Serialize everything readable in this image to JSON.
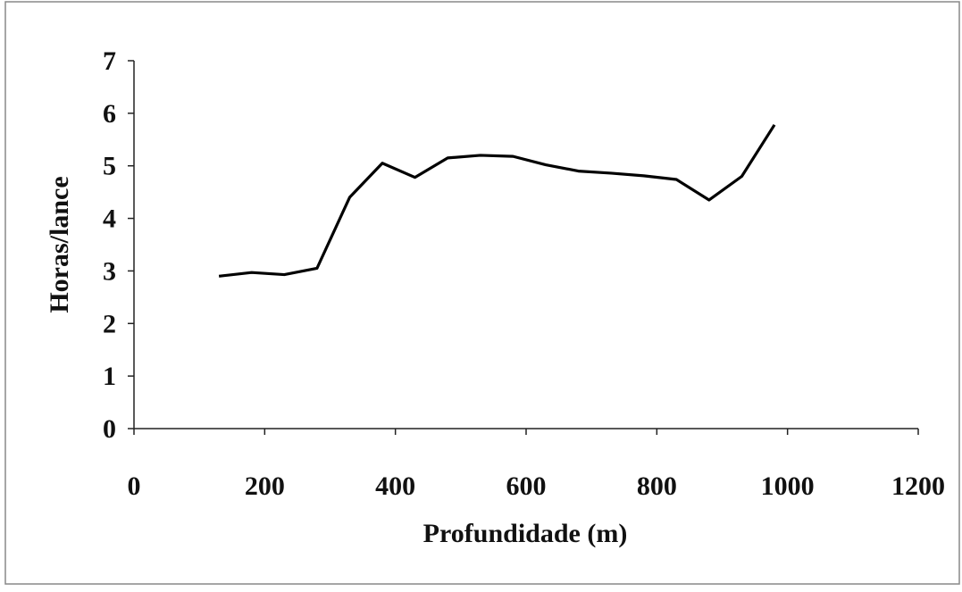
{
  "chart_data": {
    "type": "line",
    "x_label": "Profundidade (m)",
    "y_label": "Horas/lance",
    "x": [
      130,
      180,
      230,
      280,
      330,
      380,
      430,
      480,
      530,
      580,
      630,
      680,
      730,
      780,
      830,
      880,
      930,
      980
    ],
    "values": [
      2.9,
      2.97,
      2.93,
      3.05,
      4.4,
      5.05,
      4.78,
      5.15,
      5.2,
      5.18,
      5.02,
      4.9,
      4.86,
      4.81,
      4.74,
      4.35,
      4.8,
      5.78
    ],
    "color": "#000000",
    "xlim": [
      0,
      1200
    ],
    "xticks": [
      0,
      200,
      400,
      600,
      800,
      1000,
      1200
    ],
    "ylim": [
      0,
      7
    ],
    "yticks": [
      0,
      1,
      2,
      3,
      4,
      5,
      6,
      7
    ],
    "grid": false
  }
}
